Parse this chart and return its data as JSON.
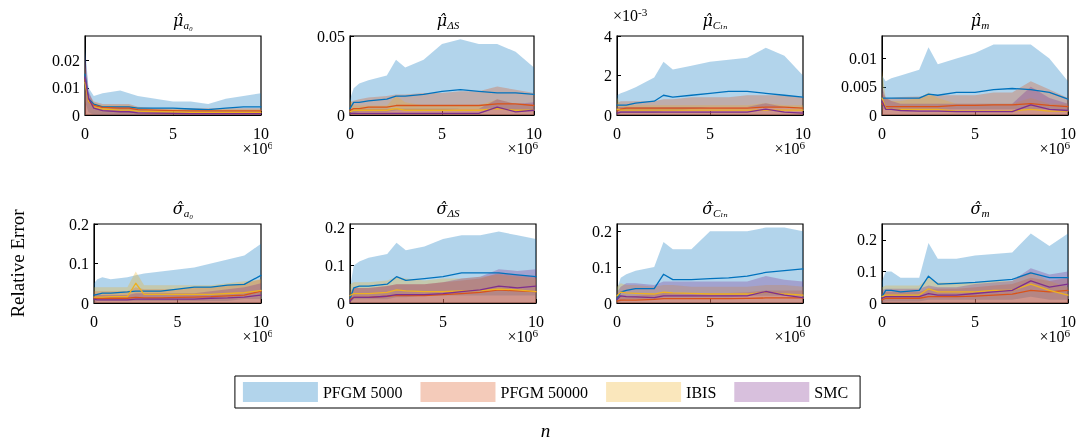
{
  "chart_data": [
    {
      "type": "line",
      "title": "μ̂$_{a₀}$",
      "marker": "none",
      "line_style": "solid",
      "grid": false,
      "annotations": [
        "×10$^{6}$"
      ],
      "x": [
        0,
        0.2,
        0.5,
        1,
        2,
        2.5,
        3,
        4,
        5,
        6,
        7,
        8,
        9,
        10
      ],
      "xlim": [
        0,
        10
      ],
      "xticks": [
        0,
        5,
        10
      ],
      "ylim": [
        0,
        0.029
      ],
      "yticks": [
        0,
        0.01,
        0.02
      ],
      "series": [
        {
          "color": "#0072bd",
          "values": [
            0.015,
            0.006,
            0.004,
            0.003,
            0.003,
            0.003,
            0.0025,
            0.0025,
            0.0025,
            0.0022,
            0.002,
            0.0025,
            0.003,
            0.003
          ],
          "lower": [
            0.005,
            0.001,
            0,
            0,
            0,
            0,
            0,
            0,
            0,
            0,
            0,
            0,
            0,
            0
          ],
          "upper": [
            0.025,
            0.01,
            0.007,
            0.008,
            0.009,
            0.008,
            0.007,
            0.006,
            0.005,
            0.005,
            0.004,
            0.006,
            0.007,
            0.008
          ]
        },
        {
          "color": "#d95319",
          "values": [
            0.013,
            0.005,
            0.0035,
            0.0028,
            0.0025,
            0.0025,
            0.002,
            0.0018,
            0.0016,
            0.0015,
            0.0015,
            0.0015,
            0.0015,
            0.0015
          ],
          "lower": [
            0,
            0,
            0,
            0,
            0,
            0,
            0,
            0,
            0,
            0,
            0,
            0,
            0,
            0
          ],
          "upper": [
            0.02,
            0.008,
            0.005,
            0.004,
            0.004,
            0.004,
            0.003,
            0.0025,
            0.0025,
            0.0025,
            0.0025,
            0.0025,
            0.0025,
            0.0025
          ]
        },
        {
          "color": "#edb120",
          "values": [
            0.012,
            0.005,
            0.003,
            0.0022,
            0.0018,
            0.0018,
            0.0014,
            0.0012,
            0.0011,
            0.001,
            0.001,
            0.001,
            0.001,
            0.001
          ],
          "lower": [
            0,
            0,
            0,
            0,
            0,
            0,
            0,
            0,
            0,
            0,
            0,
            0,
            0,
            0
          ],
          "upper": [
            0.018,
            0.007,
            0.0045,
            0.0035,
            0.0035,
            0.0035,
            0.0028,
            0.002,
            0.002,
            0.002,
            0.002,
            0.002,
            0.002,
            0.002
          ]
        },
        {
          "color": "#7e2f8e",
          "values": [
            0.014,
            0.006,
            0.0025,
            0.0016,
            0.0012,
            0.0012,
            0.0008,
            0.0007,
            0.0006,
            0.0005,
            0.0005,
            0.0005,
            0.0005,
            0.0005
          ],
          "lower": [
            0,
            0,
            0,
            0,
            0,
            0,
            0,
            0,
            0,
            0,
            0,
            0,
            0,
            0
          ],
          "upper": [
            0.023,
            0.009,
            0.004,
            0.003,
            0.003,
            0.003,
            0.002,
            0.0015,
            0.0015,
            0.0015,
            0.0015,
            0.0015,
            0.0015,
            0.0015
          ]
        }
      ]
    },
    {
      "type": "line",
      "title": "μ̂$_{ΔS}$",
      "marker": "none",
      "line_style": "solid",
      "grid": false,
      "annotations": [
        "×10$^{6}$"
      ],
      "x": [
        0,
        0.2,
        0.5,
        1,
        2,
        2.5,
        3,
        4,
        5,
        6,
        7,
        8,
        9,
        10
      ],
      "xlim": [
        0,
        10
      ],
      "xticks": [
        0,
        5,
        10
      ],
      "ylim": [
        0,
        0.05
      ],
      "yticks": [
        0,
        0.05
      ],
      "series": [
        {
          "color": "#0072bd",
          "values": [
            0.004,
            0.008,
            0.008,
            0.009,
            0.01,
            0.012,
            0.012,
            0.013,
            0.015,
            0.016,
            0.015,
            0.014,
            0.014,
            0.013
          ],
          "lower": [
            0,
            0.001,
            0.002,
            0.002,
            0.002,
            0.003,
            0.003,
            0.003,
            0.003,
            0.004,
            0.004,
            0.004,
            0.003,
            0.003
          ],
          "upper": [
            0.01,
            0.017,
            0.02,
            0.022,
            0.025,
            0.035,
            0.03,
            0.035,
            0.045,
            0.048,
            0.045,
            0.045,
            0.04,
            0.03
          ]
        },
        {
          "color": "#d95319",
          "values": [
            0.003,
            0.004,
            0.004,
            0.005,
            0.005,
            0.006,
            0.006,
            0.006,
            0.006,
            0.006,
            0.006,
            0.007,
            0.007,
            0.006
          ],
          "lower": [
            0,
            0,
            0,
            0,
            0,
            0,
            0,
            0,
            0,
            0,
            0,
            0,
            0,
            0
          ],
          "upper": [
            0.008,
            0.009,
            0.01,
            0.011,
            0.012,
            0.013,
            0.013,
            0.014,
            0.014,
            0.015,
            0.015,
            0.018,
            0.016,
            0.014
          ]
        },
        {
          "color": "#edb120",
          "values": [
            0.002,
            0.003,
            0.003,
            0.003,
            0.003,
            0.004,
            0.003,
            0.003,
            0.003,
            0.003,
            0.003,
            0.004,
            0.003,
            0.003
          ],
          "lower": [
            0,
            0,
            0,
            0,
            0,
            0,
            0,
            0,
            0,
            0,
            0,
            0,
            0,
            0
          ],
          "upper": [
            0.01,
            0.006,
            0.006,
            0.006,
            0.006,
            0.012,
            0.008,
            0.006,
            0.006,
            0.006,
            0.006,
            0.01,
            0.007,
            0.006
          ]
        },
        {
          "color": "#7e2f8e",
          "values": [
            0.001,
            0.001,
            0.001,
            0.001,
            0.001,
            0.001,
            0.001,
            0.001,
            0.001,
            0.001,
            0.001,
            0.005,
            0.002,
            0.003
          ],
          "lower": [
            0,
            0,
            0,
            0,
            0,
            0,
            0,
            0,
            0,
            0,
            0,
            0,
            0,
            0
          ],
          "upper": [
            0.004,
            0.004,
            0.004,
            0.004,
            0.004,
            0.004,
            0.004,
            0.004,
            0.004,
            0.004,
            0.004,
            0.01,
            0.007,
            0.008
          ]
        }
      ]
    },
    {
      "type": "line",
      "title": "μ̂$_{Cₗₙ}$",
      "marker": "none",
      "line_style": "solid",
      "grid": false,
      "annotations": [
        "×10$^{6}$",
        "×10$^{-3}$"
      ],
      "x": [
        0,
        0.2,
        0.5,
        1,
        2,
        2.5,
        3,
        4,
        5,
        6,
        7,
        8,
        9,
        10
      ],
      "xlim": [
        0,
        10
      ],
      "xticks": [
        0,
        5,
        10
      ],
      "ylim": [
        0,
        4
      ],
      "yticks": [
        0,
        2,
        4
      ],
      "series": [
        {
          "color": "#0072bd",
          "values": [
            0.5,
            0.5,
            0.5,
            0.6,
            0.7,
            1,
            0.9,
            1,
            1.1,
            1.2,
            1.2,
            1.1,
            1,
            0.9
          ],
          "lower": [
            0,
            0.1,
            0.1,
            0.1,
            0.1,
            0.2,
            0.2,
            0.3,
            0.4,
            0.4,
            0.4,
            0.4,
            0.4,
            0.3
          ],
          "upper": [
            1,
            1.1,
            1.2,
            1.4,
            1.9,
            2.7,
            2.3,
            2.5,
            2.7,
            2.8,
            2.9,
            3.4,
            3,
            2
          ]
        },
        {
          "color": "#d95319",
          "values": [
            0.2,
            0.3,
            0.35,
            0.35,
            0.35,
            0.35,
            0.35,
            0.35,
            0.35,
            0.35,
            0.35,
            0.4,
            0.4,
            0.35
          ],
          "lower": [
            0,
            0,
            0,
            0,
            0,
            0,
            0,
            0,
            0,
            0,
            0,
            0,
            0,
            0
          ],
          "upper": [
            0.6,
            0.7,
            0.7,
            0.7,
            0.7,
            0.8,
            0.8,
            0.9,
            0.9,
            0.9,
            1,
            1,
            1,
            0.9
          ]
        },
        {
          "color": "#edb120",
          "values": [
            0.3,
            0.25,
            0.25,
            0.25,
            0.25,
            0.25,
            0.25,
            0.25,
            0.25,
            0.25,
            0.25,
            0.25,
            0.25,
            0.25
          ],
          "lower": [
            0,
            0,
            0,
            0,
            0,
            0,
            0,
            0,
            0,
            0,
            0,
            0,
            0,
            0
          ],
          "upper": [
            0.9,
            0.5,
            0.5,
            0.5,
            0.5,
            0.5,
            0.5,
            0.5,
            0.5,
            0.5,
            0.5,
            0.6,
            0.5,
            0.5
          ]
        },
        {
          "color": "#7e2f8e",
          "values": [
            0.1,
            0.15,
            0.15,
            0.15,
            0.15,
            0.15,
            0.15,
            0.15,
            0.15,
            0.15,
            0.15,
            0.3,
            0.15,
            0.1
          ],
          "lower": [
            0,
            0,
            0,
            0,
            0,
            0,
            0,
            0,
            0,
            0,
            0,
            0,
            0,
            0
          ],
          "upper": [
            0.4,
            0.4,
            0.4,
            0.4,
            0.4,
            0.4,
            0.4,
            0.4,
            0.4,
            0.4,
            0.4,
            0.6,
            0.4,
            0.3
          ]
        }
      ]
    },
    {
      "type": "line",
      "title": "μ̂$_{m}$",
      "marker": "none",
      "line_style": "solid",
      "grid": false,
      "annotations": [
        "×10$^{6}$"
      ],
      "x": [
        0,
        0.2,
        0.5,
        1,
        2,
        2.5,
        3,
        4,
        5,
        6,
        7,
        8,
        9,
        10
      ],
      "xlim": [
        0,
        10
      ],
      "xticks": [
        0,
        5,
        10
      ],
      "ylim": [
        0,
        0.014
      ],
      "yticks": [
        0,
        0.005,
        0.01
      ],
      "series": [
        {
          "color": "#0072bd",
          "values": [
            0.003,
            0.003,
            0.003,
            0.003,
            0.003,
            0.0037,
            0.0035,
            0.004,
            0.004,
            0.0045,
            0.0047,
            0.0045,
            0.004,
            0.0028
          ],
          "lower": [
            0.001,
            0.001,
            0.001,
            0.001,
            0.001,
            0.001,
            0.001,
            0.001,
            0.001,
            0.001,
            0.001,
            0.001,
            0.001,
            0.0005
          ],
          "upper": [
            0.007,
            0.006,
            0.0065,
            0.007,
            0.008,
            0.012,
            0.009,
            0.01,
            0.011,
            0.0125,
            0.0125,
            0.0125,
            0.01,
            0.006
          ]
        },
        {
          "color": "#d95319",
          "values": [
            0.002,
            0.0015,
            0.0015,
            0.0015,
            0.0015,
            0.0015,
            0.0015,
            0.0017,
            0.0017,
            0.0018,
            0.0018,
            0.002,
            0.0017,
            0.0015
          ],
          "lower": [
            0,
            0,
            0,
            0,
            0,
            0,
            0,
            0,
            0,
            0,
            0,
            0,
            0,
            0
          ],
          "upper": [
            0.004,
            0.003,
            0.003,
            0.0032,
            0.0033,
            0.0035,
            0.0035,
            0.0035,
            0.0035,
            0.004,
            0.004,
            0.006,
            0.0045,
            0.003
          ]
        },
        {
          "color": "#edb120",
          "values": [
            0.003,
            0.0012,
            0.001,
            0.001,
            0.001,
            0.001,
            0.001,
            0.0007,
            0.0007,
            0.0007,
            0.0007,
            0.001,
            0.0007,
            0.0007
          ],
          "lower": [
            0,
            0,
            0,
            0,
            0,
            0,
            0,
            0,
            0,
            0,
            0,
            0,
            0,
            0
          ],
          "upper": [
            0.008,
            0.003,
            0.0025,
            0.0025,
            0.003,
            0.004,
            0.003,
            0.002,
            0.002,
            0.002,
            0.002,
            0.003,
            0.002,
            0.002
          ]
        },
        {
          "color": "#7e2f8e",
          "values": [
            0.0025,
            0.001,
            0.001,
            0.0008,
            0.0007,
            0.0007,
            0.0007,
            0.0006,
            0.0006,
            0.0006,
            0.0006,
            0.0018,
            0.001,
            0.0008
          ],
          "lower": [
            0,
            0,
            0,
            0,
            0,
            0,
            0,
            0,
            0,
            0,
            0,
            0,
            0,
            0
          ],
          "upper": [
            0.005,
            0.003,
            0.0025,
            0.002,
            0.002,
            0.002,
            0.002,
            0.002,
            0.002,
            0.002,
            0.002,
            0.005,
            0.003,
            0.002
          ]
        }
      ]
    },
    {
      "type": "line",
      "title": "σ̂$_{a₀}$",
      "ylabel": "Relative Error",
      "marker": "none",
      "line_style": "solid",
      "grid": false,
      "annotations": [
        "×10$^{6}$"
      ],
      "x": [
        0,
        0.2,
        0.5,
        1,
        2,
        2.5,
        3,
        4,
        5,
        6,
        7,
        8,
        9,
        10
      ],
      "xlim": [
        0,
        10
      ],
      "xticks": [
        0,
        5,
        10
      ],
      "ylim": [
        0,
        0.2
      ],
      "yticks": [
        0,
        0.1,
        0.2
      ],
      "series": [
        {
          "color": "#0072bd",
          "values": [
            0.02,
            0.022,
            0.025,
            0.025,
            0.028,
            0.03,
            0.03,
            0.03,
            0.035,
            0.04,
            0.04,
            0.045,
            0.047,
            0.07
          ],
          "lower": [
            0,
            0.005,
            0.005,
            0.005,
            0.005,
            0.005,
            0.005,
            0.005,
            0.005,
            0.005,
            0.005,
            0.005,
            0.01,
            0.01
          ],
          "upper": [
            0.05,
            0.06,
            0.065,
            0.06,
            0.065,
            0.07,
            0.075,
            0.08,
            0.085,
            0.09,
            0.1,
            0.11,
            0.12,
            0.15
          ]
        },
        {
          "color": "#d95319",
          "values": [
            0.012,
            0.012,
            0.012,
            0.012,
            0.012,
            0.014,
            0.013,
            0.013,
            0.014,
            0.015,
            0.016,
            0.018,
            0.02,
            0.03
          ],
          "lower": [
            0,
            0,
            0,
            0,
            0,
            0,
            0,
            0,
            0,
            0,
            0,
            0,
            0,
            0
          ],
          "upper": [
            0.03,
            0.03,
            0.03,
            0.03,
            0.03,
            0.04,
            0.035,
            0.035,
            0.035,
            0.04,
            0.04,
            0.045,
            0.05,
            0.06
          ]
        },
        {
          "color": "#edb120",
          "values": [
            0.015,
            0.015,
            0.015,
            0.016,
            0.016,
            0.05,
            0.022,
            0.022,
            0.022,
            0.022,
            0.022,
            0.024,
            0.026,
            0.032
          ],
          "lower": [
            0,
            0,
            0,
            0,
            0,
            0,
            0,
            0,
            0,
            0,
            0,
            0,
            0,
            0
          ],
          "upper": [
            0.04,
            0.04,
            0.04,
            0.04,
            0.04,
            0.08,
            0.045,
            0.045,
            0.045,
            0.045,
            0.045,
            0.05,
            0.055,
            0.06
          ]
        },
        {
          "color": "#7e2f8e",
          "values": [
            0.01,
            0.008,
            0.008,
            0.008,
            0.008,
            0.01,
            0.01,
            0.01,
            0.01,
            0.01,
            0.012,
            0.013,
            0.015,
            0.02
          ],
          "lower": [
            0,
            0,
            0,
            0,
            0,
            0,
            0,
            0,
            0,
            0,
            0,
            0,
            0,
            0
          ],
          "upper": [
            0.025,
            0.02,
            0.02,
            0.02,
            0.02,
            0.025,
            0.025,
            0.025,
            0.025,
            0.025,
            0.03,
            0.035,
            0.04,
            0.05
          ]
        }
      ]
    },
    {
      "type": "line",
      "title": "σ̂$_{ΔS}$",
      "xlabel": "n",
      "legend": "bottom",
      "marker": "none",
      "line_style": "solid",
      "grid": false,
      "annotations": [
        "×10$^{6}$"
      ],
      "x": [
        0,
        0.2,
        0.5,
        1,
        2,
        2.5,
        3,
        4,
        5,
        6,
        7,
        8,
        9,
        10
      ],
      "xlim": [
        0,
        10
      ],
      "xticks": [
        0,
        5,
        10
      ],
      "ylim": [
        0,
        0.21
      ],
      "yticks": [
        0,
        0.1,
        0.2
      ],
      "series": [
        {
          "name": "PFGM 5000",
          "color": "#0072bd",
          "values": [
            0.01,
            0.04,
            0.045,
            0.045,
            0.05,
            0.07,
            0.06,
            0.065,
            0.07,
            0.08,
            0.08,
            0.08,
            0.075,
            0.07
          ],
          "lower": [
            0,
            0.01,
            0.01,
            0.01,
            0.01,
            0.015,
            0.015,
            0.02,
            0.02,
            0.02,
            0.02,
            0.02,
            0.02,
            0.02
          ],
          "upper": [
            0.04,
            0.1,
            0.11,
            0.12,
            0.13,
            0.16,
            0.14,
            0.15,
            0.17,
            0.18,
            0.18,
            0.19,
            0.18,
            0.17
          ]
        },
        {
          "name": "PFGM 50000",
          "color": "#d95319",
          "values": [
            0.01,
            0.015,
            0.015,
            0.015,
            0.018,
            0.02,
            0.02,
            0.02,
            0.022,
            0.025,
            0.028,
            0.035,
            0.032,
            0.03
          ],
          "lower": [
            0,
            0,
            0,
            0,
            0,
            0,
            0,
            0,
            0,
            0,
            0,
            0,
            0,
            0
          ],
          "upper": [
            0.03,
            0.04,
            0.04,
            0.04,
            0.045,
            0.05,
            0.05,
            0.05,
            0.055,
            0.06,
            0.065,
            0.08,
            0.075,
            0.07
          ]
        },
        {
          "name": "IBIS",
          "color": "#edb120",
          "values": [
            0.02,
            0.025,
            0.025,
            0.025,
            0.028,
            0.035,
            0.032,
            0.03,
            0.03,
            0.032,
            0.033,
            0.037,
            0.035,
            0.03
          ],
          "lower": [
            0,
            0,
            0,
            0,
            0,
            0,
            0,
            0,
            0,
            0,
            0,
            0,
            0,
            0
          ],
          "upper": [
            0.05,
            0.055,
            0.055,
            0.055,
            0.06,
            0.07,
            0.065,
            0.06,
            0.065,
            0.065,
            0.07,
            0.075,
            0.07,
            0.065
          ]
        },
        {
          "name": "SMC",
          "color": "#7e2f8e",
          "values": [
            0.005,
            0.015,
            0.015,
            0.015,
            0.018,
            0.022,
            0.022,
            0.022,
            0.025,
            0.03,
            0.035,
            0.045,
            0.04,
            0.045
          ],
          "lower": [
            0,
            0,
            0,
            0,
            0,
            0,
            0,
            0,
            0,
            0,
            0,
            0,
            0,
            0
          ],
          "upper": [
            0.02,
            0.04,
            0.04,
            0.04,
            0.045,
            0.05,
            0.05,
            0.05,
            0.055,
            0.065,
            0.07,
            0.09,
            0.085,
            0.09
          ]
        }
      ]
    },
    {
      "type": "line",
      "title": "σ̂$_{Cₗₙ}$",
      "marker": "none",
      "line_style": "solid",
      "grid": false,
      "annotations": [
        "×10$^{6}$"
      ],
      "x": [
        0,
        0.2,
        0.5,
        1,
        2,
        2.5,
        3,
        4,
        5,
        6,
        7,
        8,
        9,
        10
      ],
      "xlim": [
        0,
        10
      ],
      "xticks": [
        0,
        5,
        10
      ],
      "ylim": [
        0,
        0.22
      ],
      "yticks": [
        0,
        0.1,
        0.2
      ],
      "series": [
        {
          "color": "#0072bd",
          "values": [
            0.01,
            0.03,
            0.035,
            0.04,
            0.04,
            0.08,
            0.065,
            0.065,
            0.068,
            0.07,
            0.075,
            0.085,
            0.09,
            0.095
          ],
          "lower": [
            0,
            0.005,
            0.01,
            0.01,
            0.01,
            0.015,
            0.015,
            0.015,
            0.015,
            0.015,
            0.02,
            0.02,
            0.02,
            0.02
          ],
          "upper": [
            0.04,
            0.07,
            0.08,
            0.09,
            0.1,
            0.17,
            0.15,
            0.15,
            0.2,
            0.2,
            0.2,
            0.21,
            0.21,
            0.2
          ]
        },
        {
          "color": "#d95319",
          "values": [
            0.005,
            0.008,
            0.008,
            0.008,
            0.01,
            0.012,
            0.012,
            0.012,
            0.012,
            0.012,
            0.013,
            0.014,
            0.014,
            0.014
          ],
          "lower": [
            0,
            0,
            0,
            0,
            0,
            0,
            0,
            0,
            0,
            0,
            0,
            0,
            0,
            0
          ],
          "upper": [
            0.015,
            0.02,
            0.02,
            0.02,
            0.025,
            0.028,
            0.028,
            0.028,
            0.028,
            0.028,
            0.03,
            0.035,
            0.035,
            0.035
          ]
        },
        {
          "color": "#edb120",
          "values": [
            0.02,
            0.03,
            0.028,
            0.027,
            0.025,
            0.03,
            0.028,
            0.027,
            0.025,
            0.025,
            0.025,
            0.03,
            0.025,
            0.022
          ],
          "lower": [
            0,
            0,
            0,
            0,
            0,
            0,
            0,
            0,
            0,
            0,
            0,
            0,
            0,
            0
          ],
          "upper": [
            0.045,
            0.055,
            0.05,
            0.05,
            0.045,
            0.05,
            0.05,
            0.045,
            0.045,
            0.045,
            0.045,
            0.05,
            0.05,
            0.045
          ]
        },
        {
          "color": "#7e2f8e",
          "values": [
            0.01,
            0.02,
            0.018,
            0.017,
            0.015,
            0.02,
            0.02,
            0.02,
            0.02,
            0.02,
            0.02,
            0.032,
            0.022,
            0.015
          ],
          "lower": [
            0,
            0,
            0,
            0,
            0,
            0,
            0,
            0,
            0,
            0,
            0,
            0,
            0,
            0
          ],
          "upper": [
            0.03,
            0.045,
            0.055,
            0.055,
            0.05,
            0.06,
            0.06,
            0.06,
            0.06,
            0.06,
            0.06,
            0.075,
            0.065,
            0.06
          ]
        }
      ]
    },
    {
      "type": "line",
      "title": "σ̂$_{m}$",
      "marker": "none",
      "line_style": "solid",
      "grid": false,
      "annotations": [
        "×10$^{6}$"
      ],
      "x": [
        0,
        0.2,
        0.5,
        1,
        2,
        2.5,
        3,
        4,
        5,
        6,
        7,
        8,
        9,
        10
      ],
      "xlim": [
        0,
        10
      ],
      "xticks": [
        0,
        5,
        10
      ],
      "ylim": [
        0,
        0.25
      ],
      "yticks": [
        0,
        0.1,
        0.2
      ],
      "series": [
        {
          "color": "#0072bd",
          "values": [
            0.02,
            0.04,
            0.04,
            0.035,
            0.04,
            0.085,
            0.06,
            0.062,
            0.065,
            0.07,
            0.075,
            0.095,
            0.08,
            0.08
          ],
          "lower": [
            0,
            0.005,
            0.005,
            0.005,
            0.005,
            0.01,
            0.01,
            0.01,
            0.01,
            0.01,
            0.01,
            0.02,
            0.01,
            0.01
          ],
          "upper": [
            0.07,
            0.1,
            0.1,
            0.08,
            0.08,
            0.19,
            0.14,
            0.14,
            0.15,
            0.155,
            0.16,
            0.22,
            0.18,
            0.22
          ]
        },
        {
          "color": "#d95319",
          "values": [
            0.01,
            0.015,
            0.015,
            0.015,
            0.015,
            0.02,
            0.02,
            0.02,
            0.022,
            0.025,
            0.028,
            0.04,
            0.035,
            0.04
          ],
          "lower": [
            0,
            0,
            0,
            0,
            0,
            0,
            0,
            0,
            0,
            0,
            0,
            0,
            0,
            0
          ],
          "upper": [
            0.03,
            0.035,
            0.035,
            0.035,
            0.035,
            0.045,
            0.045,
            0.045,
            0.05,
            0.055,
            0.06,
            0.08,
            0.07,
            0.08
          ]
        },
        {
          "color": "#edb120",
          "values": [
            0.02,
            0.025,
            0.025,
            0.025,
            0.025,
            0.045,
            0.035,
            0.035,
            0.035,
            0.04,
            0.04,
            0.06,
            0.04,
            0.025
          ],
          "lower": [
            0,
            0,
            0,
            0,
            0,
            0,
            0,
            0,
            0,
            0,
            0,
            0,
            0,
            0
          ],
          "upper": [
            0.05,
            0.055,
            0.055,
            0.055,
            0.055,
            0.08,
            0.065,
            0.065,
            0.065,
            0.07,
            0.07,
            0.1,
            0.07,
            0.05
          ]
        },
        {
          "color": "#7e2f8e",
          "values": [
            0.015,
            0.02,
            0.02,
            0.02,
            0.02,
            0.03,
            0.025,
            0.025,
            0.03,
            0.035,
            0.04,
            0.07,
            0.05,
            0.06
          ],
          "lower": [
            0,
            0,
            0,
            0,
            0,
            0,
            0,
            0,
            0,
            0,
            0,
            0,
            0,
            0
          ],
          "upper": [
            0.04,
            0.045,
            0.045,
            0.045,
            0.045,
            0.055,
            0.05,
            0.05,
            0.06,
            0.065,
            0.07,
            0.11,
            0.09,
            0.1
          ]
        }
      ]
    }
  ]
}
